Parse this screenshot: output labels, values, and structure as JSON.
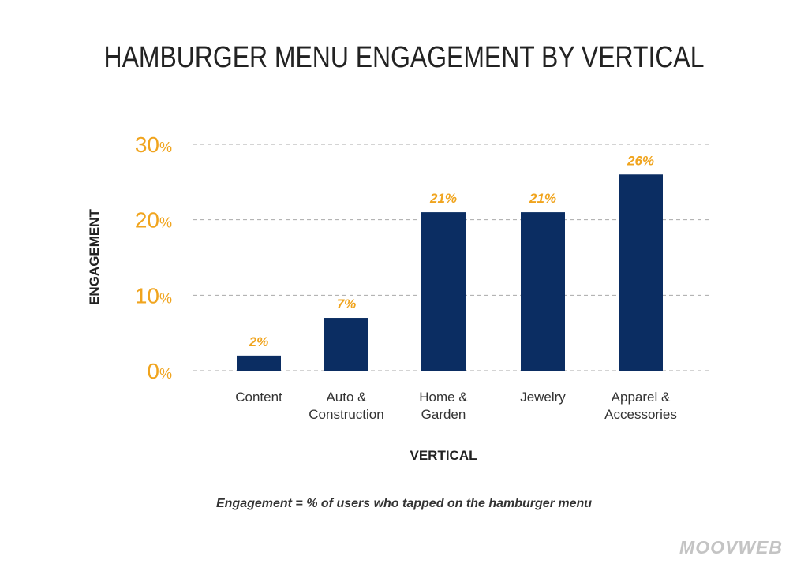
{
  "title": "HAMBURGER MENU ENGAGEMENT BY VERTICAL",
  "footnote": "Engagement = % of users who tapped on the hamburger menu",
  "brand": "MOOVWEB",
  "colors": {
    "bar": "#0b2d62",
    "accent": "#f0a41e",
    "grid": "#aaaaaa",
    "brand": "#c4c4c4"
  },
  "chart_data": {
    "type": "bar",
    "title": "HAMBURGER MENU ENGAGEMENT BY VERTICAL",
    "xlabel": "VERTICAL",
    "ylabel": "ENGAGEMENT",
    "categories": [
      [
        "Content"
      ],
      [
        "Auto &",
        "Construction"
      ],
      [
        "Home &",
        "Garden"
      ],
      [
        "Jewelry"
      ],
      [
        "Apparel &",
        "Accessories"
      ]
    ],
    "values": [
      2,
      7,
      21,
      21,
      26
    ],
    "value_labels": [
      "2%",
      "7%",
      "21%",
      "21%",
      "26%"
    ],
    "ylim": [
      0,
      30
    ],
    "yticks": [
      0,
      10,
      20,
      30
    ],
    "ytick_unit": "%",
    "grid": "horizontal-dashed",
    "legend": "none"
  }
}
